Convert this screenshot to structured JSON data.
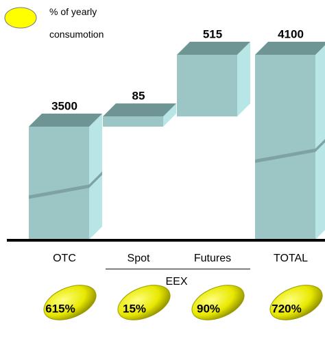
{
  "legend": [
    "% of yearly",
    "consumotion"
  ],
  "chart_data": {
    "type": "waterfall",
    "categories": [
      "OTC",
      "Spot",
      "Futures",
      "TOTAL"
    ],
    "values": [
      3500,
      85,
      515,
      4100
    ],
    "group": {
      "label": "EEX",
      "from": 1,
      "to": 2
    },
    "shares": {
      "values": [
        615,
        15,
        90,
        720
      ],
      "value_labels": [
        "615%",
        "15%",
        "90%",
        "720%"
      ]
    },
    "colors": {
      "front": "#9cc6c6",
      "side": "#b8e6e6",
      "top": "#6f9494",
      "share": "#e8e800"
    }
  }
}
